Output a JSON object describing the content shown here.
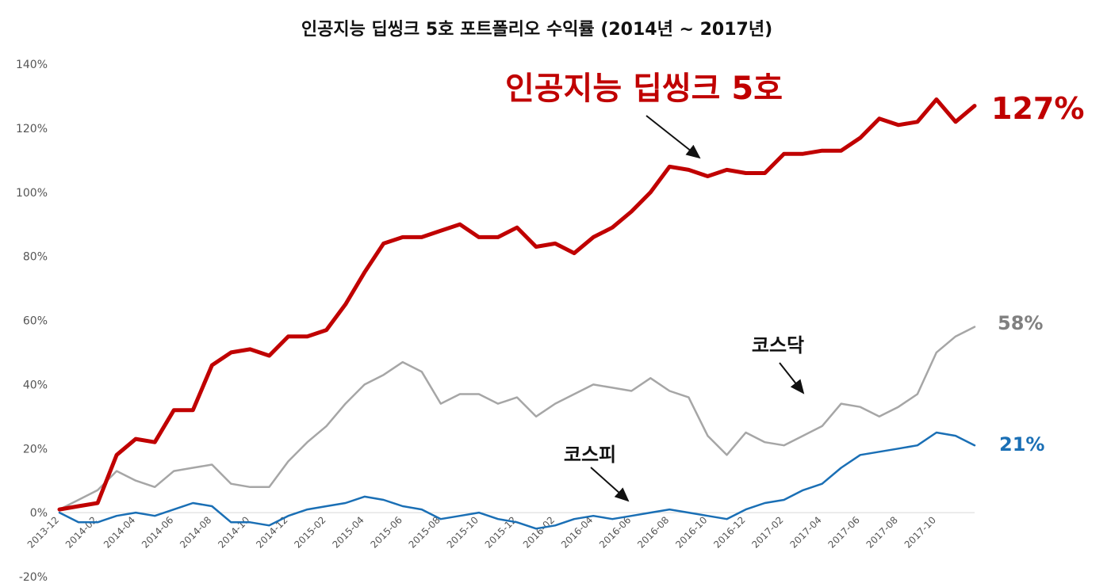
{
  "chart_data": {
    "type": "line",
    "title": "인공지능 딥씽크 5호 포트폴리오 수익률 (2014년 ~ 2017년)",
    "xlabel": "",
    "ylabel": "",
    "ylim": [
      -20,
      140
    ],
    "y_ticks": [
      "-20%",
      "0%",
      "20%",
      "40%",
      "60%",
      "80%",
      "100%",
      "120%",
      "140%"
    ],
    "x_ticks": [
      "2013-12",
      "2014-02",
      "2014-04",
      "2014-06",
      "2014-08",
      "2014-10",
      "2014-12",
      "2015-02",
      "2015-04",
      "2015-06",
      "2015-08",
      "2015-10",
      "2015-12",
      "2016-02",
      "2016-04",
      "2016-06",
      "2016-08",
      "2016-10",
      "2016-12",
      "2017-02",
      "2017-04",
      "2017-06",
      "2017-08",
      "2017-10"
    ],
    "x_months": [
      "2013-12",
      "2014-01",
      "2014-02",
      "2014-03",
      "2014-04",
      "2014-05",
      "2014-06",
      "2014-07",
      "2014-08",
      "2014-09",
      "2014-10",
      "2014-11",
      "2014-12",
      "2015-01",
      "2015-02",
      "2015-03",
      "2015-04",
      "2015-05",
      "2015-06",
      "2015-07",
      "2015-08",
      "2015-09",
      "2015-10",
      "2015-11",
      "2015-12",
      "2016-01",
      "2016-02",
      "2016-03",
      "2016-04",
      "2016-05",
      "2016-06",
      "2016-07",
      "2016-08",
      "2016-09",
      "2016-10",
      "2016-11",
      "2016-12",
      "2017-01",
      "2017-02",
      "2017-03",
      "2017-04",
      "2017-05",
      "2017-06",
      "2017-07",
      "2017-08",
      "2017-09",
      "2017-10",
      "2017-11",
      "2017-12"
    ],
    "grid": false,
    "series": [
      {
        "name": "인공지능 딥씽크 5호",
        "color": "#c00000",
        "values": [
          1,
          2,
          3,
          18,
          23,
          22,
          32,
          32,
          46,
          50,
          51,
          49,
          55,
          55,
          57,
          65,
          75,
          84,
          86,
          86,
          88,
          90,
          86,
          86,
          89,
          83,
          84,
          81,
          86,
          89,
          94,
          100,
          108,
          107,
          105,
          107,
          106,
          106,
          112,
          112,
          113,
          113,
          117,
          123,
          121,
          122,
          129,
          122,
          127
        ]
      },
      {
        "name": "코스닥",
        "color": "#a6a6a6",
        "values": [
          1,
          4,
          7,
          13,
          10,
          8,
          13,
          14,
          15,
          9,
          8,
          8,
          16,
          22,
          27,
          34,
          40,
          43,
          47,
          44,
          34,
          37,
          37,
          34,
          36,
          30,
          34,
          37,
          40,
          39,
          38,
          42,
          38,
          36,
          24,
          18,
          25,
          22,
          21,
          24,
          27,
          34,
          33,
          30,
          33,
          37,
          50,
          55,
          58
        ]
      },
      {
        "name": "코스피",
        "color": "#1a6fb5",
        "values": [
          0,
          -3,
          -3,
          -1,
          0,
          -1,
          1,
          3,
          2,
          -3,
          -3,
          -4,
          -1,
          1,
          2,
          3,
          5,
          4,
          2,
          1,
          -2,
          -1,
          0,
          -2,
          -3,
          -5,
          -4,
          -2,
          -1,
          -2,
          -1,
          0,
          1,
          0,
          -1,
          -2,
          1,
          3,
          4,
          7,
          9,
          14,
          18,
          19,
          20,
          21,
          25,
          24,
          21
        ]
      }
    ],
    "annotations": {
      "main_series_label": "인공지능 딥씽크 5호",
      "kosdaq_label": "코스닥",
      "kospi_label": "코스피",
      "end_value_main": "127%",
      "end_value_kosdaq": "58%",
      "end_value_kospi": "21%"
    }
  }
}
